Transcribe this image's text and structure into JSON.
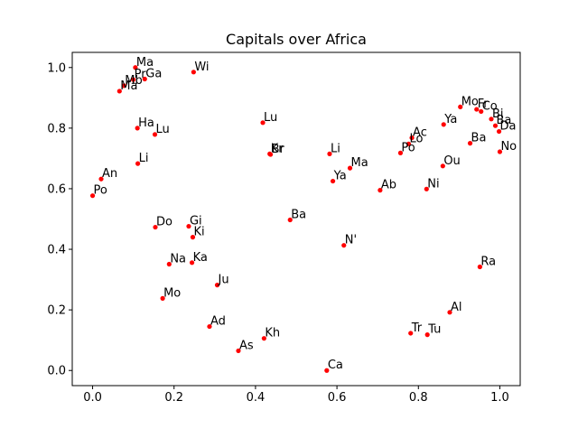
{
  "chart_data": {
    "type": "scatter",
    "title": "Capitals over Africa",
    "xlabel": "",
    "ylabel": "",
    "xlim": [
      -0.05,
      1.05
    ],
    "ylim": [
      -0.05,
      1.05
    ],
    "xticks": [
      "0.0",
      "0.2",
      "0.4",
      "0.6",
      "0.8",
      "1.0"
    ],
    "yticks": [
      "0.0",
      "0.2",
      "0.4",
      "0.6",
      "0.8",
      "1.0"
    ],
    "grid": false,
    "marker_color": "#ff0000",
    "points": [
      {
        "label": "Ma",
        "x": 0.105,
        "y": 1.0
      },
      {
        "label": "Pr",
        "x": 0.1,
        "y": 0.96
      },
      {
        "label": "Ga",
        "x": 0.128,
        "y": 0.962
      },
      {
        "label": "Mb",
        "x": 0.077,
        "y": 0.94
      },
      {
        "label": "Ma",
        "x": 0.066,
        "y": 0.922
      },
      {
        "label": "Wi",
        "x": 0.248,
        "y": 0.985
      },
      {
        "label": "Ha",
        "x": 0.11,
        "y": 0.8
      },
      {
        "label": "Lu",
        "x": 0.153,
        "y": 0.779
      },
      {
        "label": "Li",
        "x": 0.111,
        "y": 0.683
      },
      {
        "label": "An",
        "x": 0.021,
        "y": 0.632
      },
      {
        "label": "Po",
        "x": 0.0,
        "y": 0.577
      },
      {
        "label": "Lu",
        "x": 0.418,
        "y": 0.818
      },
      {
        "label": "Kr",
        "x": 0.435,
        "y": 0.715
      },
      {
        "label": "Br",
        "x": 0.437,
        "y": 0.713
      },
      {
        "label": "Li",
        "x": 0.582,
        "y": 0.715
      },
      {
        "label": "Ma",
        "x": 0.632,
        "y": 0.668
      },
      {
        "label": "Ya",
        "x": 0.59,
        "y": 0.625
      },
      {
        "label": "Ab",
        "x": 0.706,
        "y": 0.595
      },
      {
        "label": "Ac",
        "x": 0.784,
        "y": 0.768
      },
      {
        "label": "Lo",
        "x": 0.776,
        "y": 0.748
      },
      {
        "label": "Po",
        "x": 0.756,
        "y": 0.718
      },
      {
        "label": "Ya",
        "x": 0.862,
        "y": 0.812
      },
      {
        "label": "Ou",
        "x": 0.86,
        "y": 0.675
      },
      {
        "label": "Ni",
        "x": 0.82,
        "y": 0.599
      },
      {
        "label": "Mo",
        "x": 0.903,
        "y": 0.87
      },
      {
        "label": "Fr",
        "x": 0.943,
        "y": 0.862
      },
      {
        "label": "Co",
        "x": 0.954,
        "y": 0.855
      },
      {
        "label": "Bi",
        "x": 0.979,
        "y": 0.83
      },
      {
        "label": "Ba",
        "x": 0.989,
        "y": 0.808
      },
      {
        "label": "Da",
        "x": 0.998,
        "y": 0.789
      },
      {
        "label": "Ba",
        "x": 0.927,
        "y": 0.75
      },
      {
        "label": "No",
        "x": 1.0,
        "y": 0.722
      },
      {
        "label": "Ba",
        "x": 0.485,
        "y": 0.497
      },
      {
        "label": "N'",
        "x": 0.617,
        "y": 0.413
      },
      {
        "label": "Ra",
        "x": 0.951,
        "y": 0.342
      },
      {
        "label": "Do",
        "x": 0.154,
        "y": 0.473
      },
      {
        "label": "Gi",
        "x": 0.236,
        "y": 0.476
      },
      {
        "label": "Ki",
        "x": 0.246,
        "y": 0.44
      },
      {
        "label": "Na",
        "x": 0.188,
        "y": 0.351
      },
      {
        "label": "Ka",
        "x": 0.244,
        "y": 0.356
      },
      {
        "label": "Ju",
        "x": 0.306,
        "y": 0.282
      },
      {
        "label": "Mo",
        "x": 0.172,
        "y": 0.238
      },
      {
        "label": "Ad",
        "x": 0.287,
        "y": 0.145
      },
      {
        "label": "As",
        "x": 0.358,
        "y": 0.065
      },
      {
        "label": "Kh",
        "x": 0.421,
        "y": 0.106
      },
      {
        "label": "Ca",
        "x": 0.575,
        "y": 0.0
      },
      {
        "label": "Al",
        "x": 0.877,
        "y": 0.192
      },
      {
        "label": "Tr",
        "x": 0.781,
        "y": 0.123
      },
      {
        "label": "Tu",
        "x": 0.822,
        "y": 0.118
      }
    ]
  }
}
